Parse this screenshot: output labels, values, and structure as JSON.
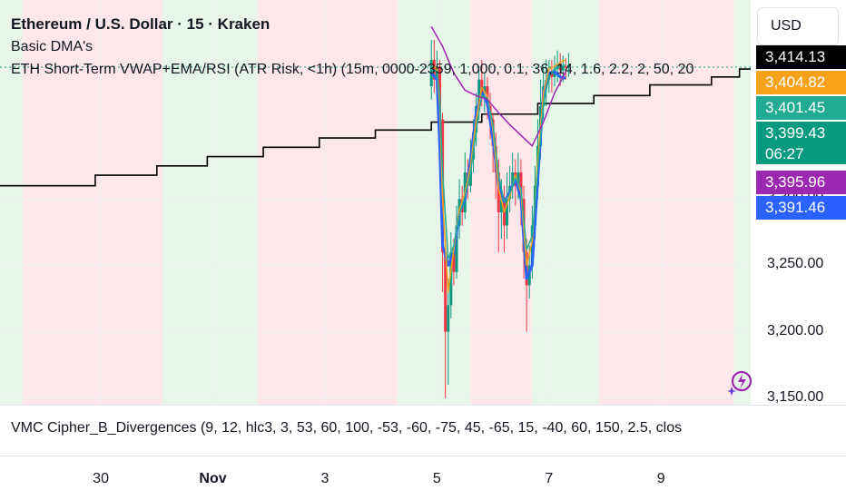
{
  "legend": {
    "title": "Ethereum / U.S. Dollar · 15 · Kraken",
    "indicator1": "Basic DMA's",
    "indicator2": "ETH Short-Term VWAP+EMA/RSI (ATR Risk, <1h) (15m, 0000-2359, 1,000, 0.1, 36, 14, 1.6, 2.2, 2, 50, 20"
  },
  "currency": "USD",
  "price_tags": [
    {
      "value": "3,414.13",
      "color": "#000000"
    },
    {
      "value": "3,404.82",
      "color": "#f7a21b"
    },
    {
      "value": "3,401.45",
      "color": "#22ab94"
    },
    {
      "value": "3,399.43",
      "color": "#089981"
    },
    {
      "value": "06:27",
      "color": "#089981"
    },
    {
      "value": "3,395.96",
      "color": "#9c27b0"
    },
    {
      "value": "3,391.46",
      "color": "#2962ff"
    }
  ],
  "indicator3": "VMC Cipher_B_Divergences (9, 12, hlc3, 3, 53, 60, 100, -53, -60, -75, 45, -65, 15, -40, 60, 150, 2.5, clos",
  "logo": "sparkle-lightning-icon",
  "chart_data": {
    "type": "candlestick",
    "y_ticks": [
      "3,300.00",
      "3,250.00",
      "3,200.00",
      "3,150.00"
    ],
    "y_tick_values": [
      3300,
      3250,
      3200,
      3150
    ],
    "ylim": [
      3145,
      3450
    ],
    "x_ticks": [
      {
        "label": "30",
        "x": 30,
        "bold": false
      },
      {
        "label": "Nov",
        "x": 32,
        "bold": true
      },
      {
        "label": "3",
        "x": 34,
        "bold": false
      },
      {
        "label": "5",
        "x": 36,
        "bold": false
      },
      {
        "label": "7",
        "x": 38,
        "bold": false
      },
      {
        "label": "9",
        "x": 40,
        "bold": false
      }
    ],
    "xlim": [
      28.2,
      41.6
    ],
    "last_price": 3399.43,
    "session_bands": [
      {
        "from": 28.2,
        "to": 28.6,
        "state": "green"
      },
      {
        "from": 28.6,
        "to": 31.1,
        "state": "red"
      },
      {
        "from": 31.1,
        "to": 32.8,
        "state": "green"
      },
      {
        "from": 32.8,
        "to": 35.3,
        "state": "red"
      },
      {
        "from": 35.3,
        "to": 36.6,
        "state": "green"
      },
      {
        "from": 36.6,
        "to": 37.7,
        "state": "red"
      },
      {
        "from": 37.7,
        "to": 38.9,
        "state": "green"
      },
      {
        "from": 38.9,
        "to": 41.3,
        "state": "red"
      },
      {
        "from": 41.3,
        "to": 41.6,
        "state": "green"
      }
    ],
    "step_line": [
      [
        28.2,
        3310
      ],
      [
        29.9,
        3310
      ],
      [
        29.9,
        3318
      ],
      [
        31.0,
        3318
      ],
      [
        31.0,
        3325
      ],
      [
        31.9,
        3325
      ],
      [
        31.9,
        3332
      ],
      [
        32.9,
        3332
      ],
      [
        32.9,
        3339
      ],
      [
        33.9,
        3339
      ],
      [
        33.9,
        3346
      ],
      [
        34.9,
        3346
      ],
      [
        34.9,
        3352
      ],
      [
        35.9,
        3352
      ],
      [
        35.9,
        3358
      ],
      [
        36.8,
        3358
      ],
      [
        36.8,
        3364
      ],
      [
        37.8,
        3364
      ],
      [
        37.8,
        3372
      ],
      [
        38.8,
        3372
      ],
      [
        38.8,
        3378
      ],
      [
        39.8,
        3378
      ],
      [
        39.8,
        3386
      ],
      [
        40.9,
        3386
      ],
      [
        40.9,
        3392
      ],
      [
        41.4,
        3392
      ],
      [
        41.4,
        3398
      ],
      [
        41.6,
        3398
      ]
    ],
    "candles": [
      [
        35.9,
        3385,
        3405,
        3375,
        3420
      ],
      [
        35.95,
        3405,
        3390,
        3380,
        3420
      ],
      [
        36.0,
        3390,
        3400,
        3378,
        3412
      ],
      [
        36.05,
        3400,
        3360,
        3330,
        3405
      ],
      [
        36.1,
        3360,
        3260,
        3230,
        3365
      ],
      [
        36.15,
        3260,
        3200,
        3150,
        3270
      ],
      [
        36.2,
        3200,
        3220,
        3160,
        3240
      ],
      [
        36.25,
        3220,
        3260,
        3210,
        3275
      ],
      [
        36.3,
        3260,
        3245,
        3235,
        3270
      ],
      [
        36.35,
        3245,
        3280,
        3240,
        3295
      ],
      [
        36.4,
        3280,
        3300,
        3270,
        3315
      ],
      [
        36.45,
        3300,
        3290,
        3280,
        3310
      ],
      [
        36.5,
        3290,
        3320,
        3285,
        3335
      ],
      [
        36.55,
        3320,
        3310,
        3300,
        3330
      ],
      [
        36.6,
        3310,
        3330,
        3305,
        3345
      ],
      [
        36.65,
        3330,
        3350,
        3320,
        3360
      ],
      [
        36.7,
        3350,
        3370,
        3340,
        3380
      ],
      [
        36.75,
        3370,
        3390,
        3360,
        3400
      ],
      [
        36.8,
        3390,
        3380,
        3370,
        3405
      ],
      [
        36.85,
        3380,
        3385,
        3365,
        3395
      ],
      [
        36.9,
        3385,
        3370,
        3360,
        3392
      ],
      [
        36.95,
        3370,
        3360,
        3345,
        3380
      ],
      [
        37.0,
        3360,
        3340,
        3320,
        3365
      ],
      [
        37.05,
        3340,
        3320,
        3300,
        3350
      ],
      [
        37.1,
        3320,
        3290,
        3260,
        3330
      ],
      [
        37.15,
        3290,
        3300,
        3270,
        3315
      ],
      [
        37.2,
        3300,
        3280,
        3260,
        3310
      ],
      [
        37.25,
        3280,
        3300,
        3270,
        3320
      ],
      [
        37.3,
        3300,
        3310,
        3290,
        3325
      ],
      [
        37.35,
        3310,
        3320,
        3300,
        3335
      ],
      [
        37.4,
        3320,
        3310,
        3295,
        3330
      ],
      [
        37.45,
        3310,
        3320,
        3300,
        3335
      ],
      [
        37.5,
        3320,
        3300,
        3280,
        3330
      ],
      [
        37.55,
        3300,
        3260,
        3240,
        3310
      ],
      [
        37.6,
        3260,
        3235,
        3200,
        3270
      ],
      [
        37.65,
        3235,
        3250,
        3225,
        3265
      ],
      [
        37.7,
        3250,
        3280,
        3240,
        3295
      ],
      [
        37.75,
        3280,
        3310,
        3270,
        3325
      ],
      [
        37.8,
        3310,
        3340,
        3300,
        3360
      ],
      [
        37.85,
        3340,
        3370,
        3330,
        3390
      ],
      [
        37.9,
        3370,
        3385,
        3360,
        3400
      ],
      [
        37.95,
        3385,
        3390,
        3370,
        3405
      ],
      [
        38.0,
        3390,
        3395,
        3380,
        3405
      ],
      [
        38.05,
        3395,
        3392,
        3380,
        3405
      ],
      [
        38.1,
        3392,
        3398,
        3385,
        3408
      ],
      [
        38.15,
        3398,
        3402,
        3388,
        3412
      ],
      [
        38.2,
        3402,
        3397,
        3385,
        3410
      ],
      [
        38.25,
        3397,
        3400,
        3388,
        3408
      ],
      [
        38.3,
        3400,
        3399,
        3390,
        3406
      ],
      [
        38.35,
        3399,
        3401,
        3392,
        3410
      ]
    ],
    "series": [
      {
        "name": "",
        "color": "#2962ff",
        "width": 3,
        "points": [
          [
            35.9,
            3395
          ],
          [
            36.0,
            3390
          ],
          [
            36.05,
            3340
          ],
          [
            36.1,
            3265
          ],
          [
            36.2,
            3250
          ],
          [
            36.3,
            3260
          ],
          [
            36.4,
            3290
          ],
          [
            36.5,
            3300
          ],
          [
            36.6,
            3330
          ],
          [
            36.7,
            3365
          ],
          [
            36.8,
            3380
          ],
          [
            36.9,
            3372
          ],
          [
            37.0,
            3345
          ],
          [
            37.1,
            3310
          ],
          [
            37.2,
            3298
          ],
          [
            37.3,
            3305
          ],
          [
            37.4,
            3315
          ],
          [
            37.5,
            3300
          ],
          [
            37.6,
            3240
          ],
          [
            37.7,
            3250
          ],
          [
            37.8,
            3315
          ],
          [
            37.9,
            3380
          ],
          [
            38.0,
            3395
          ],
          [
            38.1,
            3396
          ],
          [
            38.2,
            3392
          ],
          [
            38.3,
            3391
          ]
        ]
      },
      {
        "name": "",
        "color": "#f7a21b",
        "width": 1.5,
        "points": [
          [
            35.9,
            3402
          ],
          [
            36.0,
            3398
          ],
          [
            36.05,
            3370
          ],
          [
            36.1,
            3300
          ],
          [
            36.2,
            3230
          ],
          [
            36.3,
            3262
          ],
          [
            36.4,
            3292
          ],
          [
            36.5,
            3305
          ],
          [
            36.6,
            3325
          ],
          [
            36.7,
            3360
          ],
          [
            36.8,
            3384
          ],
          [
            36.9,
            3378
          ],
          [
            37.0,
            3352
          ],
          [
            37.1,
            3308
          ],
          [
            37.2,
            3290
          ],
          [
            37.3,
            3302
          ],
          [
            37.4,
            3318
          ],
          [
            37.5,
            3305
          ],
          [
            37.6,
            3250
          ],
          [
            37.7,
            3268
          ],
          [
            37.8,
            3330
          ],
          [
            37.9,
            3380
          ],
          [
            38.0,
            3398
          ],
          [
            38.1,
            3400
          ],
          [
            38.2,
            3403
          ],
          [
            38.3,
            3405
          ]
        ]
      },
      {
        "name": "",
        "color": "#22ab94",
        "width": 1.5,
        "points": [
          [
            35.9,
            3398
          ],
          [
            36.0,
            3396
          ],
          [
            36.05,
            3378
          ],
          [
            36.1,
            3320
          ],
          [
            36.2,
            3255
          ],
          [
            36.3,
            3265
          ],
          [
            36.4,
            3288
          ],
          [
            36.5,
            3302
          ],
          [
            36.6,
            3320
          ],
          [
            36.7,
            3352
          ],
          [
            36.8,
            3378
          ],
          [
            36.9,
            3376
          ],
          [
            37.0,
            3356
          ],
          [
            37.1,
            3318
          ],
          [
            37.2,
            3298
          ],
          [
            37.3,
            3304
          ],
          [
            37.4,
            3316
          ],
          [
            37.5,
            3308
          ],
          [
            37.6,
            3262
          ],
          [
            37.7,
            3272
          ],
          [
            37.8,
            3322
          ],
          [
            37.9,
            3372
          ],
          [
            38.0,
            3392
          ],
          [
            38.1,
            3398
          ],
          [
            38.2,
            3400
          ],
          [
            38.3,
            3401
          ]
        ]
      },
      {
        "name": "",
        "color": "#9c27b0",
        "width": 1.5,
        "points": [
          [
            35.9,
            3430
          ],
          [
            36.1,
            3415
          ],
          [
            36.3,
            3395
          ],
          [
            36.5,
            3382
          ],
          [
            36.7,
            3378
          ],
          [
            36.9,
            3375
          ],
          [
            37.1,
            3365
          ],
          [
            37.3,
            3356
          ],
          [
            37.5,
            3348
          ],
          [
            37.7,
            3340
          ],
          [
            37.9,
            3358
          ],
          [
            38.1,
            3380
          ],
          [
            38.3,
            3396
          ]
        ]
      }
    ]
  }
}
